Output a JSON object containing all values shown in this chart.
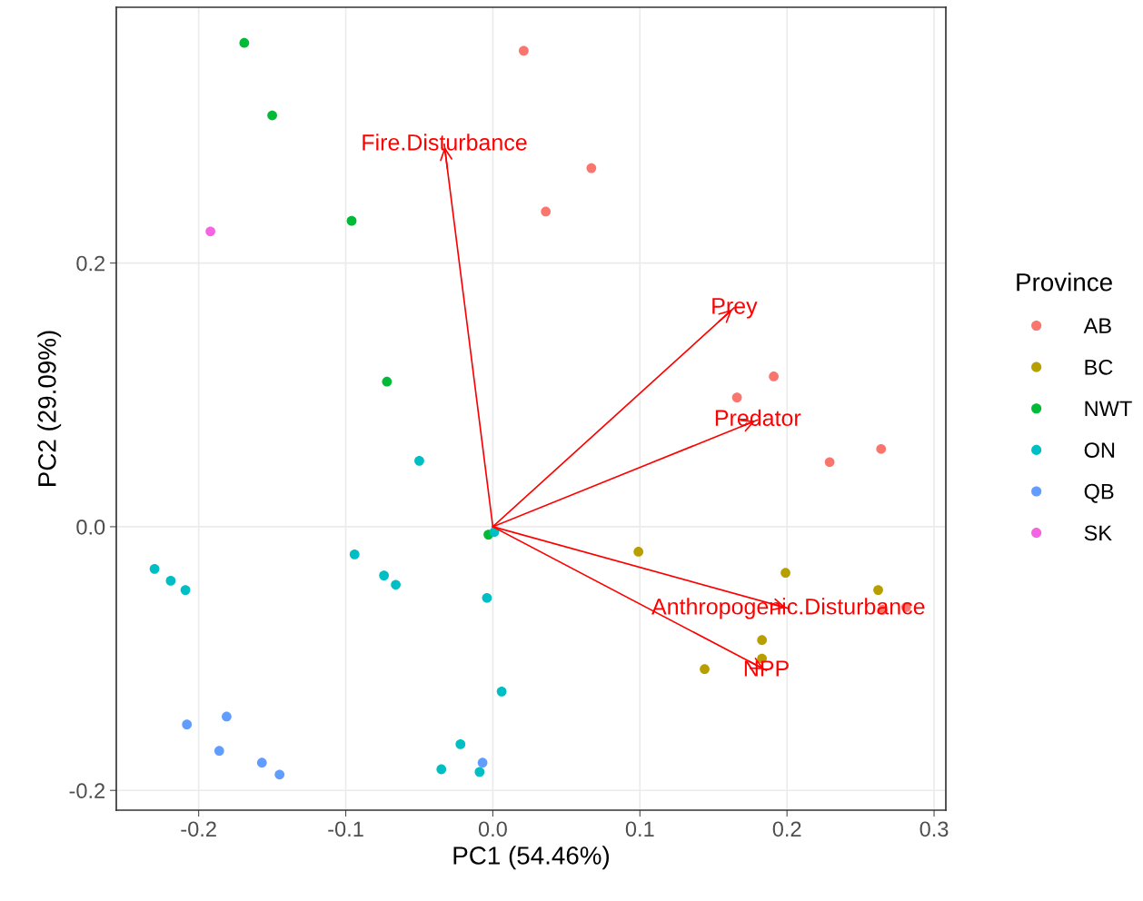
{
  "chart_data": {
    "type": "scatter",
    "xlabel": "PC1 (54.46%)",
    "ylabel": "PC2 (29.09%)",
    "legend_title": "Province",
    "xlim": [
      -0.256,
      0.308
    ],
    "ylim": [
      -0.215,
      0.394
    ],
    "xticks": [
      {
        "value": -0.2,
        "label": "-0.2"
      },
      {
        "value": -0.1,
        "label": "-0.1"
      },
      {
        "value": 0.0,
        "label": "0.0"
      },
      0.1,
      0.2,
      0.3
    ],
    "yticks": [
      {
        "value": -0.2,
        "label": "-0.2"
      },
      {
        "value": 0.0,
        "label": "0.0"
      },
      0.2
    ],
    "grid": true,
    "legend": "right",
    "series": [
      {
        "name": "AB",
        "marker": "circle",
        "color": "#f8766d",
        "x": [
          0.021,
          0.067,
          0.036,
          0.191,
          0.166,
          0.264,
          0.229,
          0.265,
          0.281
        ],
        "values": [
          0.361,
          0.272,
          0.239,
          0.114,
          0.098,
          0.059,
          0.049,
          -0.063,
          -0.061
        ]
      },
      {
        "name": "BC",
        "marker": "circle",
        "color": "#b79f00",
        "x": [
          0.099,
          0.199,
          0.262,
          0.183,
          0.183,
          0.144
        ],
        "values": [
          -0.019,
          -0.035,
          -0.048,
          -0.086,
          -0.1,
          -0.108
        ]
      },
      {
        "name": "NWT",
        "marker": "circle",
        "color": "#00ba38",
        "x": [
          -0.169,
          -0.15,
          -0.096,
          -0.072,
          -0.003
        ],
        "values": [
          0.367,
          0.312,
          0.232,
          0.11,
          -0.006
        ]
      },
      {
        "name": "ON",
        "marker": "circle",
        "color": "#00bfc4",
        "x": [
          -0.05,
          0.001,
          -0.23,
          -0.219,
          -0.209,
          -0.094,
          -0.074,
          -0.066,
          -0.004,
          0.006,
          -0.022,
          -0.035,
          -0.009
        ],
        "values": [
          0.05,
          -0.004,
          -0.032,
          -0.041,
          -0.048,
          -0.021,
          -0.037,
          -0.044,
          -0.054,
          -0.125,
          -0.165,
          -0.184,
          -0.186
        ]
      },
      {
        "name": "QB",
        "marker": "circle",
        "color": "#619cff",
        "x": [
          -0.208,
          -0.181,
          -0.186,
          -0.157,
          -0.145,
          -0.007
        ],
        "values": [
          -0.15,
          -0.144,
          -0.17,
          -0.179,
          -0.188,
          -0.179
        ]
      },
      {
        "name": "SK",
        "marker": "circle",
        "color": "#f564e3",
        "x": [
          -0.192
        ],
        "values": [
          0.224
        ]
      },
      {
        "name": "Fire.Disturbance",
        "type": "line",
        "color": "#ff0000",
        "x": [
          0,
          -0.033
        ],
        "values": [
          0,
          0.29
        ]
      },
      {
        "name": "Prey",
        "type": "line",
        "color": "#ff0000",
        "x": [
          0,
          0.164
        ],
        "values": [
          0,
          0.166
        ]
      },
      {
        "name": "Predator",
        "type": "line",
        "color": "#ff0000",
        "x": [
          0,
          0.18
        ],
        "values": [
          0,
          0.081
        ]
      },
      {
        "name": "Anthropogenic.Disturbance",
        "type": "line",
        "color": "#ff0000",
        "x": [
          0,
          0.201
        ],
        "values": [
          0,
          -0.062
        ]
      },
      {
        "name": "NPP",
        "type": "line",
        "color": "#ff0000",
        "x": [
          0,
          0.186
        ],
        "values": [
          0,
          -0.109
        ]
      }
    ]
  }
}
